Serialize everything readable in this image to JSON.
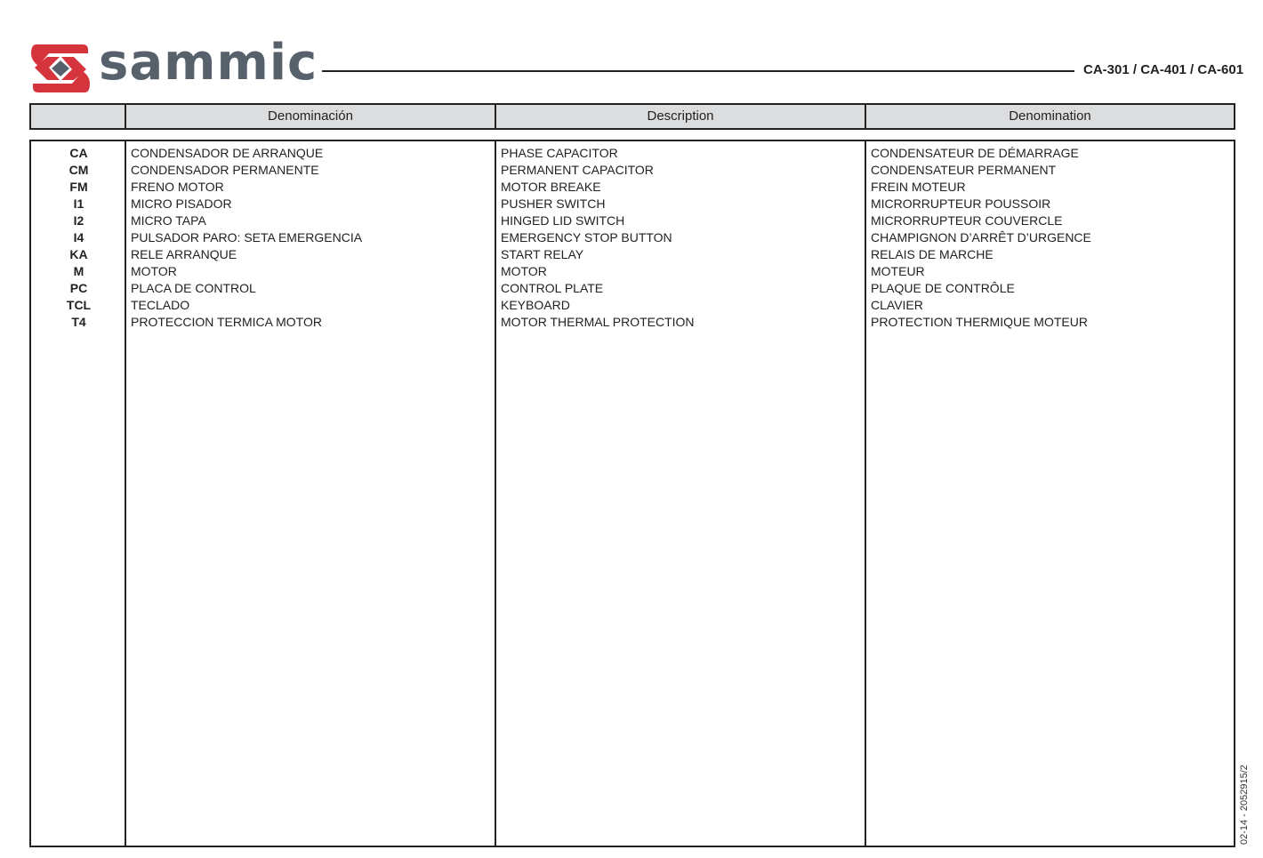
{
  "header": {
    "logo_text": "sammic",
    "model": "CA-301 / CA-401 / CA-601",
    "brand_color": "#d6343c",
    "logo_text_color": "#56616b"
  },
  "columns": [
    "",
    "Denominación",
    "Description",
    "Denomination"
  ],
  "rows": [
    {
      "code": "CA",
      "es": "CONDENSADOR DE ARRANQUE",
      "en": "PHASE CAPACITOR",
      "fr": "CONDENSATEUR DE DÉMARRAGE"
    },
    {
      "code": "CM",
      "es": "CONDENSADOR PERMANENTE",
      "en": "PERMANENT CAPACITOR",
      "fr": "CONDENSATEUR PERMANENT"
    },
    {
      "code": "FM",
      "es": "FRENO MOTOR",
      "en": "MOTOR BREAKE",
      "fr": "FREIN MOTEUR"
    },
    {
      "code": "I1",
      "es": "MICRO PISADOR",
      "en": "PUSHER SWITCH",
      "fr": "MICRORRUPTEUR POUSSOIR"
    },
    {
      "code": "I2",
      "es": "MICRO TAPA",
      "en": "HINGED LID SWITCH",
      "fr": "MICRORRUPTEUR COUVERCLE"
    },
    {
      "code": "I4",
      "es": "PULSADOR PARO: SETA EMERGENCIA",
      "en": "EMERGENCY STOP BUTTON",
      "fr": "CHAMPIGNON D’ARRÊT D’URGENCE"
    },
    {
      "code": "KA",
      "es": "RELE ARRANQUE",
      "en": "START RELAY",
      "fr": "RELAIS DE MARCHE"
    },
    {
      "code": "M",
      "es": "MOTOR",
      "en": "MOTOR",
      "fr": "MOTEUR"
    },
    {
      "code": "PC",
      "es": "PLACA DE CONTROL",
      "en": "CONTROL PLATE",
      "fr": "PLAQUE DE CONTRÔLE"
    },
    {
      "code": "TCL",
      "es": "TECLADO",
      "en": "KEYBOARD",
      "fr": "CLAVIER"
    },
    {
      "code": "T4",
      "es": "PROTECCION TERMICA MOTOR",
      "en": "MOTOR THERMAL PROTECTION",
      "fr": "PROTECTION THERMIQUE MOTEUR"
    }
  ],
  "footer": {
    "doc_ref": "02-14 - 2052915/2"
  }
}
